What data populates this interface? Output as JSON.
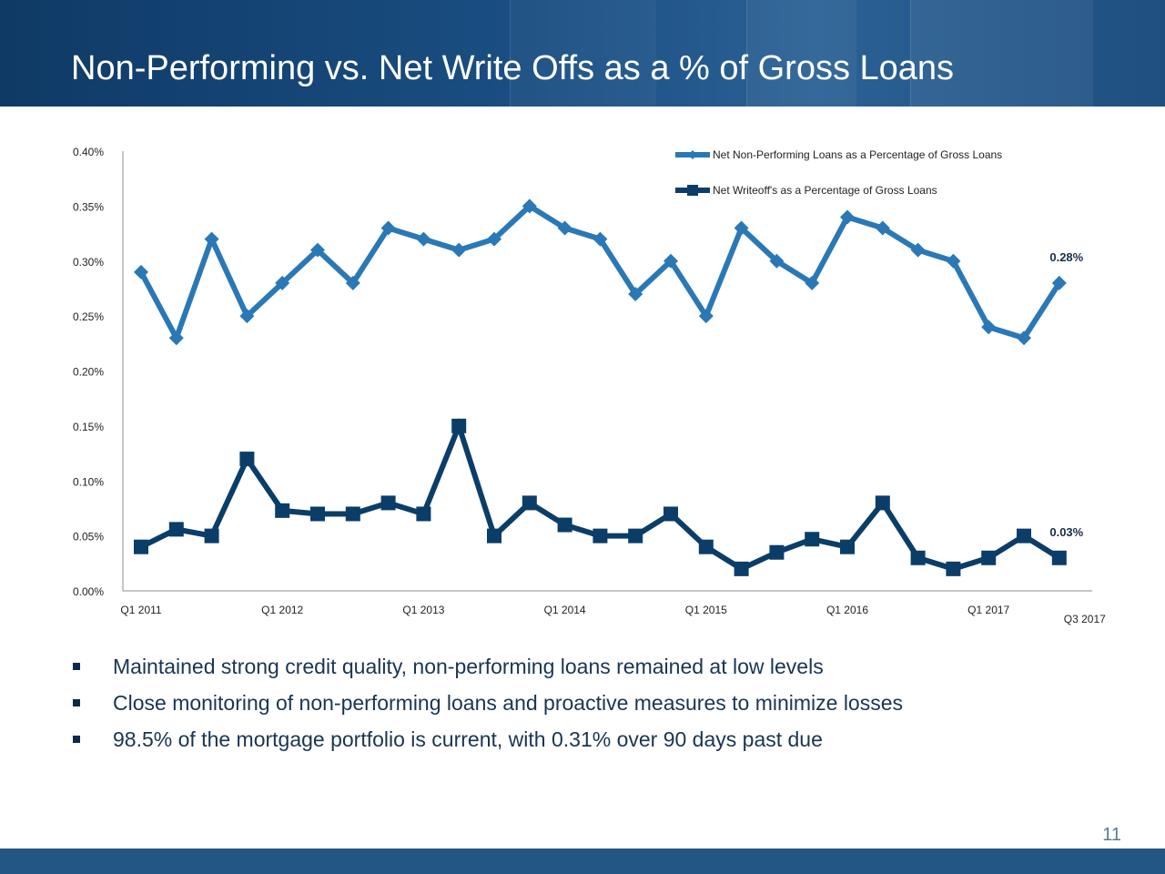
{
  "title": "Non-Performing vs. Net Write Offs as a % of Gross Loans",
  "bullets": [
    "Maintained strong credit quality, non-performing loans remained at low levels",
    "Close monitoring of non-performing loans and proactive measures to minimize losses",
    "98.5% of the mortgage portfolio is current, with 0.31% over 90 days past due"
  ],
  "page_number": "11",
  "chart_data": {
    "type": "line",
    "x": [
      "Q1 2011",
      "Q2 2011",
      "Q3 2011",
      "Q4 2011",
      "Q1 2012",
      "Q2 2012",
      "Q3 2012",
      "Q4 2012",
      "Q1 2013",
      "Q2 2013",
      "Q3 2013",
      "Q4 2013",
      "Q1 2014",
      "Q2 2014",
      "Q3 2014",
      "Q4 2014",
      "Q1 2015",
      "Q2 2015",
      "Q3 2015",
      "Q4 2015",
      "Q1 2016",
      "Q2 2016",
      "Q3 2016",
      "Q4 2016",
      "Q1 2017",
      "Q2 2017",
      "Q3 2017"
    ],
    "x_tick_labels": [
      "Q1 2011",
      "Q1 2012",
      "Q1 2013",
      "Q1 2014",
      "Q1 2015",
      "Q1 2016",
      "Q1 2017",
      "Q3 2017"
    ],
    "series": [
      {
        "name": "Net Non-Performing Loans as a Percentage of Gross Loans",
        "color": "#2a78b6",
        "marker": "diamond",
        "values": [
          0.29,
          0.23,
          0.32,
          0.25,
          0.28,
          0.31,
          0.28,
          0.33,
          0.32,
          0.31,
          0.32,
          0.35,
          0.33,
          0.32,
          0.27,
          0.3,
          0.25,
          0.33,
          0.3,
          0.28,
          0.34,
          0.33,
          0.31,
          0.3,
          0.24,
          0.23,
          0.28
        ],
        "end_label": "0.28%"
      },
      {
        "name": "Net Writeoff's as a Percentage of Gross Loans",
        "color": "#0b3d69",
        "marker": "square",
        "values": [
          0.04,
          0.056,
          0.05,
          0.12,
          0.073,
          0.07,
          0.07,
          0.08,
          0.07,
          0.15,
          0.05,
          0.08,
          0.06,
          0.05,
          0.05,
          0.07,
          0.04,
          0.02,
          0.035,
          0.047,
          0.04,
          0.08,
          0.03,
          0.02,
          0.03,
          0.05,
          0.03
        ],
        "end_label": "0.03%"
      }
    ],
    "y_ticks": [
      "0.00%",
      "0.05%",
      "0.10%",
      "0.15%",
      "0.20%",
      "0.25%",
      "0.30%",
      "0.35%",
      "0.40%"
    ],
    "ylim": [
      0,
      0.4
    ],
    "grid": false,
    "legend_position": "top-right"
  }
}
